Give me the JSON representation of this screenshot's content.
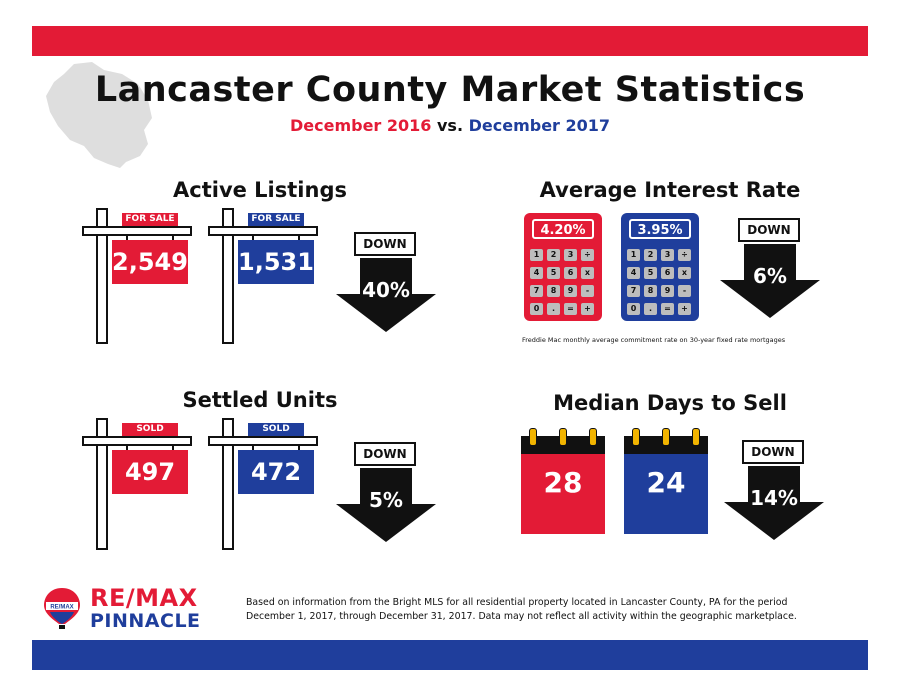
{
  "header": {
    "title": "Lancaster County Market Statistics",
    "subtitle_a": "December 2016",
    "subtitle_vs": "vs.",
    "subtitle_b": "December 2017"
  },
  "colors": {
    "red": "#e31b36",
    "blue": "#1f3e9c",
    "black": "#111111",
    "gray": "#dedede",
    "gold": "#f2b400"
  },
  "active_listings": {
    "title": "Active Listings",
    "tag": "FOR SALE",
    "value_2016": "2,549",
    "value_2017": "1,531",
    "change_label": "DOWN",
    "change_pct": "40%"
  },
  "interest_rate": {
    "title": "Average Interest Rate",
    "value_2016": "4.20%",
    "value_2017": "3.95%",
    "keys": [
      "1",
      "2",
      "3",
      "÷",
      "4",
      "5",
      "6",
      "x",
      "7",
      "8",
      "9",
      "-",
      "0",
      ".",
      "=",
      "+"
    ],
    "change_label": "DOWN",
    "change_pct": "6%",
    "note": "Freddie Mac monthly average commitment rate on 30-year fixed rate mortgages"
  },
  "settled_units": {
    "title": "Settled Units",
    "tag": "SOLD",
    "value_2016": "497",
    "value_2017": "472",
    "change_label": "DOWN",
    "change_pct": "5%"
  },
  "days_to_sell": {
    "title": "Median Days to Sell",
    "value_2016": "28",
    "value_2017": "24",
    "change_label": "DOWN",
    "change_pct": "14%"
  },
  "footer": {
    "logo_brand": "RE/MAX",
    "logo_sub": "PINNACLE",
    "balloon_text": "RE/MAX",
    "disclaimer_line1": "Based on information from the Bright MLS for all residential property located in Lancaster County, PA for the period",
    "disclaimer_line2": "December 1, 2017, through December 31, 2017.  Data may not reflect all activity within the geographic marketplace."
  }
}
